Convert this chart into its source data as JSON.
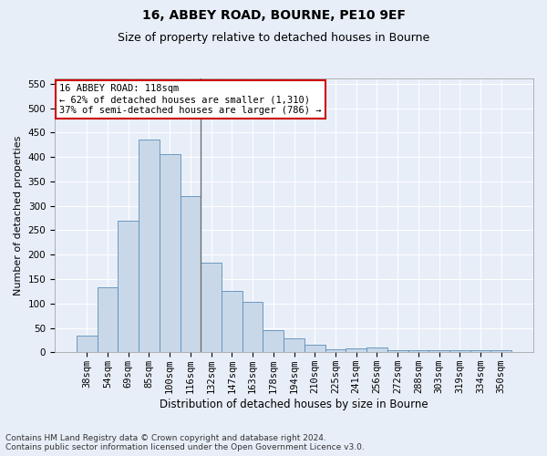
{
  "title": "16, ABBEY ROAD, BOURNE, PE10 9EF",
  "subtitle": "Size of property relative to detached houses in Bourne",
  "xlabel": "Distribution of detached houses by size in Bourne",
  "ylabel": "Number of detached properties",
  "categories": [
    "38sqm",
    "54sqm",
    "69sqm",
    "85sqm",
    "100sqm",
    "116sqm",
    "132sqm",
    "147sqm",
    "163sqm",
    "178sqm",
    "194sqm",
    "210sqm",
    "225sqm",
    "241sqm",
    "256sqm",
    "272sqm",
    "288sqm",
    "303sqm",
    "319sqm",
    "334sqm",
    "350sqm"
  ],
  "values": [
    35,
    133,
    270,
    435,
    405,
    320,
    183,
    125,
    103,
    45,
    28,
    15,
    7,
    8,
    10,
    5,
    5,
    5,
    5,
    5,
    5
  ],
  "bar_color": "#c8d8e8",
  "bar_edge_color": "#5b8db8",
  "vline_color": "#666666",
  "vline_x": 5.5,
  "annotation_text": "16 ABBEY ROAD: 118sqm\n← 62% of detached houses are smaller (1,310)\n37% of semi-detached houses are larger (786) →",
  "annotation_box_facecolor": "#ffffff",
  "annotation_box_edgecolor": "#cc0000",
  "ylim": [
    0,
    560
  ],
  "yticks": [
    0,
    50,
    100,
    150,
    200,
    250,
    300,
    350,
    400,
    450,
    500,
    550
  ],
  "plot_bg_color": "#e8eef8",
  "fig_bg_color": "#e8eef8",
  "grid_color": "#ffffff",
  "title_fontsize": 10,
  "subtitle_fontsize": 9,
  "xlabel_fontsize": 8.5,
  "ylabel_fontsize": 8,
  "tick_fontsize": 7.5,
  "annotation_fontsize": 7.5,
  "footer_fontsize": 6.5,
  "footer": "Contains HM Land Registry data © Crown copyright and database right 2024.\nContains public sector information licensed under the Open Government Licence v3.0."
}
